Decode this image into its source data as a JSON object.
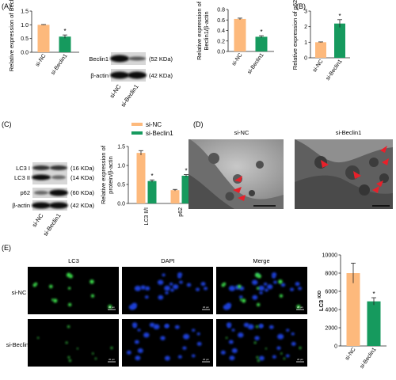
{
  "colors": {
    "si_nc": "#FDB97C",
    "si_beclin1": "#169A5E",
    "arrow": "#E8202A"
  },
  "panel_a": {
    "letter": "(A)",
    "blot_label_beclin1": "Beclin1",
    "blot_label_actin": "β-actin",
    "size_beclin1": "(52 KDa)",
    "size_actin": "(42 KDa)",
    "lane_labels": [
      "si-NC",
      "si-Beclin1"
    ]
  },
  "panel_b": {
    "letter": "(B)"
  },
  "panel_c": {
    "letter": "(C)",
    "blot_labels": [
      "LC3 I",
      "LC3 II",
      "p62",
      "β-actin"
    ],
    "blot_sizes": [
      "(16 KDa)",
      "(14 KDa)",
      "(60 KDa)",
      "(42 KDa)"
    ],
    "lane_labels": [
      "si-NC",
      "si-Beclin1"
    ]
  },
  "panel_d": {
    "letter": "(D)",
    "labels": [
      "si-NC",
      "si-Beclin1"
    ]
  },
  "panel_e": {
    "letter": "(E)",
    "columns": [
      "LC3",
      "DAPI",
      "Merge"
    ],
    "rows": [
      "si-NC",
      "si-Beclin1"
    ],
    "scale_text": "20 μm"
  },
  "significance_mark": "*",
  "chart_data": [
    {
      "id": "A_mrna",
      "type": "bar",
      "categories": [
        "si-NC",
        "si-Beclin1"
      ],
      "values": [
        1.0,
        0.57
      ],
      "errors": [
        0.01,
        0.06
      ],
      "significant": [
        false,
        true
      ],
      "ylabel": "Relative expression of Beclin1",
      "ylim": [
        0,
        1.5
      ],
      "yticks": [
        "0.0",
        "0.5",
        "1.0",
        "1.5"
      ]
    },
    {
      "id": "A_protein",
      "type": "bar",
      "categories": [
        "si-NC",
        "si-Beclin1"
      ],
      "values": [
        0.62,
        0.28
      ],
      "errors": [
        0.015,
        0.02
      ],
      "significant": [
        false,
        true
      ],
      "ylabel": "Relative expression of Beclin1/β-actin",
      "ylim": [
        0,
        0.8
      ],
      "yticks": [
        "0.0",
        "0.2",
        "0.4",
        "0.6",
        "0.8"
      ]
    },
    {
      "id": "B_p62",
      "type": "bar",
      "categories": [
        "si-NC",
        "si-Beclin1"
      ],
      "values": [
        1.0,
        2.2
      ],
      "errors": [
        0.02,
        0.25
      ],
      "significant": [
        false,
        true
      ],
      "ylabel": "Relative expression of p62",
      "ylim": [
        0,
        3
      ],
      "yticks": [
        "0",
        "1",
        "2",
        "3"
      ]
    },
    {
      "id": "C_grouped",
      "type": "bar",
      "categories": [
        "LC3 II/I",
        "p62"
      ],
      "series": [
        {
          "name": "si-NC",
          "values": [
            1.33,
            0.35
          ],
          "errors": [
            0.06,
            0.02
          ]
        },
        {
          "name": "si-Beclin1",
          "values": [
            0.59,
            0.73
          ],
          "errors": [
            0.03,
            0.03
          ]
        }
      ],
      "significant": [
        true,
        true
      ],
      "ylabel": "Relative expression of protein/β-actin",
      "ylim": [
        0,
        1.5
      ],
      "yticks": [
        "0.0",
        "0.5",
        "1.0",
        "1.5"
      ],
      "legend": "top"
    },
    {
      "id": "E_iod",
      "type": "bar",
      "categories": [
        "si-NC",
        "si-Beclin1"
      ],
      "values": [
        8000,
        4900
      ],
      "errors": [
        1100,
        400
      ],
      "significant": [
        false,
        true
      ],
      "ylabel": "LC3 IOD",
      "ylim": [
        0,
        10000
      ],
      "yticks": [
        "0",
        "2000",
        "4000",
        "6000",
        "8000",
        "10000"
      ]
    }
  ]
}
